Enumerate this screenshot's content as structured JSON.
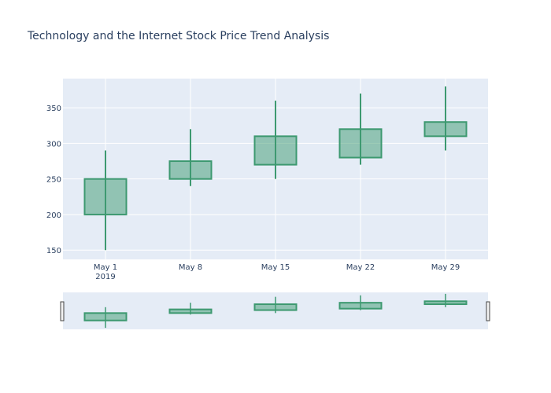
{
  "chart_data": {
    "type": "candlestick",
    "title": "Technology and the Internet Stock Price Trend Analysis",
    "xlabel": "",
    "ylabel": "",
    "x": [
      "2019-05-01",
      "2019-05-08",
      "2019-05-15",
      "2019-05-22",
      "2019-05-29"
    ],
    "x_tick_labels": [
      {
        "date": "2019-05-01",
        "label": "May 1",
        "sublabel": "2019"
      },
      {
        "date": "2019-05-08",
        "label": "May 8",
        "sublabel": ""
      },
      {
        "date": "2019-05-15",
        "label": "May 15",
        "sublabel": ""
      },
      {
        "date": "2019-05-22",
        "label": "May 22",
        "sublabel": ""
      },
      {
        "date": "2019-05-29",
        "label": "May 29",
        "sublabel": ""
      }
    ],
    "open": [
      200,
      250,
      270,
      280,
      310
    ],
    "close": [
      250,
      275,
      310,
      320,
      330
    ],
    "high": [
      290,
      320,
      360,
      370,
      380
    ],
    "low": [
      150,
      240,
      250,
      270,
      290
    ],
    "ylim": [
      137,
      391
    ],
    "y_ticks": [
      150,
      200,
      250,
      300,
      350
    ],
    "grid": true,
    "legend": "none",
    "rangeslider": true,
    "colors": {
      "increasing_line": "#3d9970",
      "increasing_fill": "rgba(61,153,112,0.5)",
      "plot_bg": "#e5ecf6",
      "grid": "#ffffff",
      "text": "#2a3f5f"
    }
  }
}
